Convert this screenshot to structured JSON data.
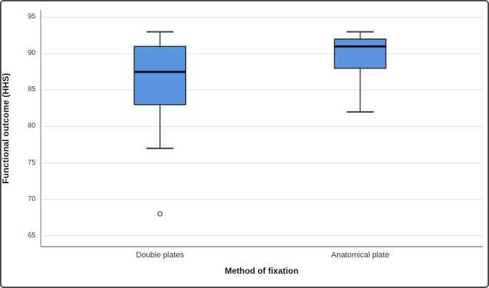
{
  "figure": {
    "background": "#ffffff",
    "border_color": "#4b4b4b"
  },
  "chart_data": {
    "type": "boxplot",
    "title": "",
    "xlabel": "Method of fixation",
    "ylabel": "Functional outcome (HHS)",
    "ylim": [
      63.5,
      96
    ],
    "yticks": [
      65,
      70,
      75,
      80,
      85,
      90,
      95
    ],
    "grid": true,
    "legend": "none",
    "categories": [
      "Double plates",
      "Anatomical plate"
    ],
    "series": [
      {
        "category": "Double plates",
        "whisker_low": 77,
        "q1": 83,
        "median": 87.5,
        "q3": 91,
        "whisker_high": 93,
        "outliers": [
          68
        ]
      },
      {
        "category": "Anatomical plate",
        "whisker_low": 82,
        "q1": 88,
        "median": 91,
        "q3": 92,
        "whisker_high": 93,
        "outliers": []
      }
    ],
    "colors": {
      "box_fill": "#5A96E2",
      "box_border": "#353535",
      "median_line": "#0a0a0a",
      "whisker_line": "#3f3f3f",
      "gridline": "#e3e3e3",
      "axis_line": "#8a8a8a",
      "outlier_stroke": "#4a4a4a",
      "tick_text": "#3a3a3a"
    }
  }
}
